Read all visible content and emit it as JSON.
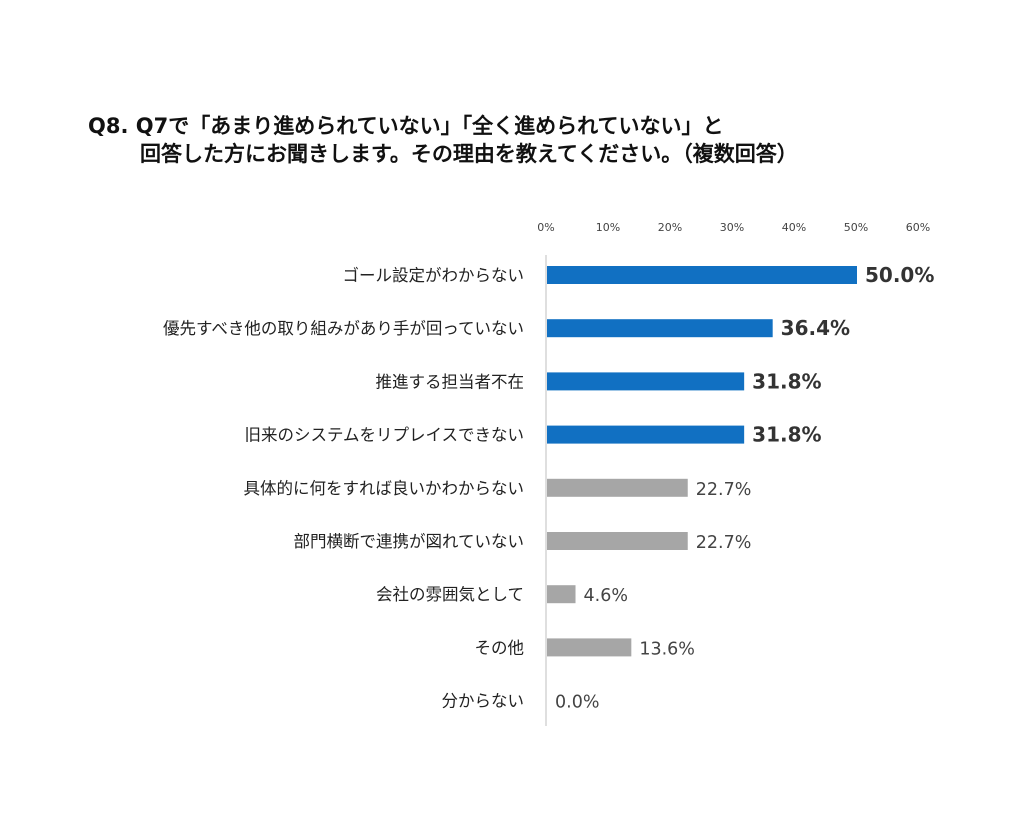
{
  "title_line1": "Q8. Q7で「あまり進められていない」「全く進められていない」と",
  "title_line2": "回答した方にお聞きします。その理由を教えてください。（複数回答）",
  "chart_data": {
    "type": "bar",
    "orientation": "horizontal",
    "xlim": [
      0,
      60
    ],
    "ticks": [
      "0%",
      "10%",
      "20%",
      "30%",
      "40%",
      "50%",
      "60%"
    ],
    "tick_values": [
      0,
      10,
      20,
      30,
      40,
      50,
      60
    ],
    "grid": false,
    "colors": {
      "highlight": "#1170c2",
      "normal": "#a6a6a6",
      "axis": "#bfbfbf"
    },
    "categories": [
      "ゴール設定がわからない",
      "優先すべき他の取り組みがあり手が回っていない",
      "推進する担当者不在",
      "旧来のシステムをリプレイスできない",
      "具体的に何をすれば良いかわからない",
      "部門横断で連携が図れていない",
      "会社の雰囲気として",
      "その他",
      "分からない"
    ],
    "values": [
      50.0,
      36.4,
      31.8,
      31.8,
      22.7,
      22.7,
      4.6,
      13.6,
      0.0
    ],
    "labels": [
      "50.0%",
      "36.4%",
      "31.8%",
      "31.8%",
      "22.7%",
      "22.7%",
      "4.6%",
      "13.6%",
      "0.0%"
    ],
    "highlighted": [
      true,
      true,
      true,
      true,
      false,
      false,
      false,
      false,
      false
    ]
  }
}
